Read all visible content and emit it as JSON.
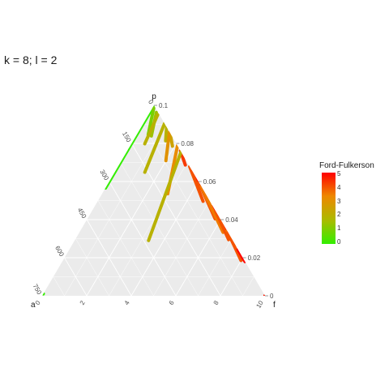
{
  "title": "k = 8; l = 2",
  "chart_data": {
    "type": "ternary",
    "title": "k = 8; l = 2",
    "vertices": {
      "top": "p",
      "left": "a",
      "right": "f"
    },
    "axis_p_ticks": [
      "0.1",
      "0.08",
      "0.06",
      "0.04",
      "0.02",
      "0"
    ],
    "axis_a_ticks": [
      "0",
      "150",
      "300",
      "450",
      "600",
      "750"
    ],
    "axis_f_ticks": [
      "0",
      "2",
      "4",
      "6",
      "8",
      "10"
    ],
    "p_max": 0.1,
    "a_max": 750,
    "f_max": 10,
    "legend": {
      "title": "Ford-Fulkerson",
      "ticks": [
        "5",
        "4",
        "3",
        "2",
        "1",
        "0"
      ],
      "min": 0,
      "max": 5,
      "colors": [
        "#33ee00",
        "#aabb00",
        "#ee8800",
        "#ff0000"
      ]
    },
    "background": "#ebebeb",
    "grid_color": "#ffffff",
    "series": [
      {
        "p": [
          0.091,
          0.068
        ],
        "a": [
          0,
          150
        ],
        "f": [
          0,
          0
        ],
        "value": 0
      },
      {
        "p": [
          0.067,
          0.047
        ],
        "a": [
          150,
          270
        ],
        "f": [
          0,
          0
        ],
        "value": 0
      },
      {
        "p": [
          0.001,
          0.001
        ],
        "a": [
          705,
          725
        ],
        "f": [
          0,
          0
        ],
        "value": 0
      },
      {
        "p": [
          0,
          0
        ],
        "a": [
          0,
          0
        ],
        "f": [
          1,
          9.5
        ],
        "value": 2
      },
      {
        "p": [
          0,
          0
        ],
        "a": [
          0,
          0
        ],
        "f": [
          9.5,
          10
        ],
        "value": 5
      },
      {
        "p": [
          0.083,
          0.066
        ],
        "a": [
          5,
          60
        ],
        "f": [
          0.05,
          0.4
        ],
        "value": 1
      },
      {
        "p": [
          0.082,
          0.067
        ],
        "a": [
          5,
          55
        ],
        "f": [
          0.25,
          0.55
        ],
        "value": 1.5
      },
      {
        "p": [
          0.078,
          0.067
        ],
        "a": [
          0,
          25
        ],
        "f": [
          1,
          1.2
        ],
        "value": 2
      },
      {
        "p": [
          0.077,
          0.066
        ],
        "a": [
          0,
          15
        ],
        "f": [
          1.3,
          1.6
        ],
        "value": 2.5
      },
      {
        "p": [
          0.08,
          0.06
        ],
        "a": [
          5,
          80
        ],
        "f": [
          0.35,
          0.45
        ],
        "value": 2
      },
      {
        "p": [
          0.076,
          0.048
        ],
        "a": [
          0,
          120
        ],
        "f": [
          0.8,
          1.0
        ],
        "value": 2
      },
      {
        "p": [
          0.074,
          0.057
        ],
        "a": [
          0,
          55
        ],
        "f": [
          1.2,
          1.6
        ],
        "value": 3
      },
      {
        "p": [
          0.07,
          0.06
        ],
        "a": [
          0,
          10
        ],
        "f": [
          2.2,
          2.6
        ],
        "value": 4.3
      },
      {
        "p": [
          0.067,
          0.04
        ],
        "a": [
          0,
          95
        ],
        "f": [
          1.8,
          2.2
        ],
        "value": 3.2
      },
      {
        "p": [
          0.062,
          0.053
        ],
        "a": [
          0,
          5
        ],
        "f": [
          3.3,
          4.0
        ],
        "value": 5
      },
      {
        "p": [
          0.058,
          0.052
        ],
        "a": [
          0,
          0
        ],
        "f": [
          4.2,
          4.8
        ],
        "value": 5
      },
      {
        "p": [
          0.062,
          0.021
        ],
        "a": [
          0,
          205
        ],
        "f": [
          2.0,
          2.4
        ],
        "value": 2
      },
      {
        "p": [
          0.059,
          0.043
        ],
        "a": [
          0,
          20
        ],
        "f": [
          2.8,
          4.1
        ],
        "value": 4
      },
      {
        "p": [
          0.053,
          0.036
        ],
        "a": [
          0,
          15
        ],
        "f": [
          3.6,
          5.1
        ],
        "value": 4
      },
      {
        "p": [
          0.045,
          0.04
        ],
        "a": [
          0,
          5
        ],
        "f": [
          5.1,
          5.6
        ],
        "value": 5
      },
      {
        "p": [
          0.047,
          0.03
        ],
        "a": [
          0,
          15
        ],
        "f": [
          3.5,
          5.8
        ],
        "value": 3.5
      },
      {
        "p": [
          0.039,
          0.033
        ],
        "a": [
          0,
          0
        ],
        "f": [
          5.9,
          6.6
        ],
        "value": 5
      },
      {
        "p": [
          0.035,
          0.024
        ],
        "a": [
          0,
          10
        ],
        "f": [
          4.4,
          5.6
        ],
        "value": 4
      },
      {
        "p": [
          0.032,
          0.026
        ],
        "a": [
          0,
          5
        ],
        "f": [
          6.2,
          7.2
        ],
        "value": 3.5
      },
      {
        "p": [
          0.027,
          0.016
        ],
        "a": [
          0,
          10
        ],
        "f": [
          5.4,
          6.9
        ],
        "value": 4
      },
      {
        "p": [
          0.023,
          0.018
        ],
        "a": [
          0,
          0
        ],
        "f": [
          7.2,
          8.2
        ],
        "value": 5
      }
    ]
  }
}
